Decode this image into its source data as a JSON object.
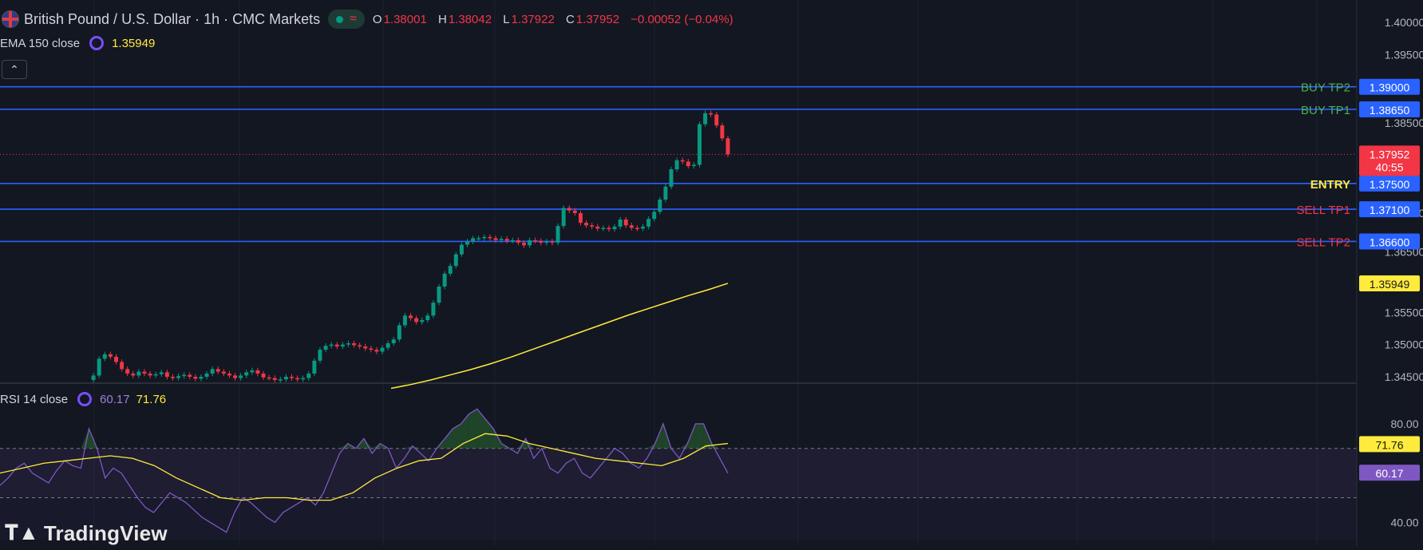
{
  "header": {
    "symbol_title": "British Pound / U.S. Dollar · 1h · CMC Markets",
    "open_label": "O",
    "open": "1.38001",
    "high_label": "H",
    "high": "1.38042",
    "low_label": "L",
    "low": "1.37922",
    "close_label": "C",
    "close": "1.37952",
    "change": "−0.00052 (−0.04%)"
  },
  "ema": {
    "label": "EMA 150 close",
    "value": "1.35949"
  },
  "rsi": {
    "label": "RSI 14 close",
    "value": "60.17",
    "ma_value": "71.76"
  },
  "price_axis": {
    "ticks": [
      "1.40000",
      "1.39500",
      "1.35500",
      "1.35000",
      "1.34500"
    ],
    "partial_ticks": [
      "1.38500",
      "1.37100",
      "1.36500"
    ]
  },
  "levels": [
    {
      "name": "BUY TP2",
      "price": 1.39,
      "label_text": "1.39000",
      "color": "#4caf50"
    },
    {
      "name": "BUY TP1",
      "price": 1.3865,
      "label_text": "1.38650",
      "color": "#4caf50"
    },
    {
      "name": "ENTRY",
      "price": 1.375,
      "label_text": "1.37500",
      "color": "#ffeb3b"
    },
    {
      "name": "SELL TP1",
      "price": 1.371,
      "label_text": "1.37100",
      "color": "#f23645"
    },
    {
      "name": "SELL TP2",
      "price": 1.366,
      "label_text": "1.36600",
      "color": "#f23645"
    }
  ],
  "current_price": {
    "value": "1.37952",
    "countdown": "40:55"
  },
  "ema_badge": "1.35949",
  "rsi_axis": {
    "ticks": [
      "80.00",
      "40.00"
    ],
    "ma_badge": "71.76",
    "rsi_badge": "60.17"
  },
  "branding": {
    "name": "TradingView"
  },
  "colors": {
    "background": "#131722",
    "up": "#089981",
    "down": "#f23645",
    "level_line": "#2962ff",
    "ema_line": "#ffeb3b",
    "rsi_line": "#7e57c2",
    "rsi_ma": "#ffeb3b"
  },
  "chart_data": {
    "type": "candlestick",
    "symbol": "GBPUSD",
    "interval": "1h",
    "price_ylim": [
      1.343,
      1.403
    ],
    "price_series": [
      1.3445,
      1.3452,
      1.3478,
      1.3485,
      1.3481,
      1.3473,
      1.3462,
      1.3455,
      1.3452,
      1.3458,
      1.3455,
      1.3452,
      1.3454,
      1.3457,
      1.345,
      1.3448,
      1.3451,
      1.3453,
      1.345,
      1.3447,
      1.345,
      1.3455,
      1.3462,
      1.3458,
      1.3455,
      1.3452,
      1.3448,
      1.3452,
      1.3457,
      1.346,
      1.3455,
      1.3449,
      1.3448,
      1.3445,
      1.3446,
      1.345,
      1.3448,
      1.3446,
      1.3448,
      1.3455,
      1.3475,
      1.3492,
      1.3498,
      1.35,
      1.3497,
      1.35,
      1.3502,
      1.3499,
      1.3497,
      1.3494,
      1.3492,
      1.3489,
      1.3495,
      1.3502,
      1.3508,
      1.353,
      1.3545,
      1.3541,
      1.3535,
      1.3538,
      1.3545,
      1.3565,
      1.359,
      1.361,
      1.3622,
      1.364,
      1.3655,
      1.366,
      1.3665,
      1.3665,
      1.3667,
      1.3665,
      1.3662,
      1.3664,
      1.3661,
      1.3662,
      1.3658,
      1.3654,
      1.3662,
      1.3661,
      1.3658,
      1.366,
      1.3658,
      1.3684,
      1.3712,
      1.3708,
      1.3704,
      1.3689,
      1.3685,
      1.3683,
      1.368,
      1.3681,
      1.3679,
      1.3683,
      1.3694,
      1.3685,
      1.3681,
      1.368,
      1.3683,
      1.3695,
      1.3706,
      1.3725,
      1.3745,
      1.3772,
      1.3786,
      1.3784,
      1.3777,
      1.3779,
      1.3842,
      1.3859,
      1.3857,
      1.384,
      1.382,
      1.3795
    ],
    "ema_150": [
      1.3432,
      1.3438,
      1.3445,
      1.3453,
      1.3461,
      1.347,
      1.348,
      1.3491,
      1.3502,
      1.3513,
      1.3524,
      1.3535,
      1.3546,
      1.3556,
      1.3566,
      1.3576,
      1.3585,
      1.3595
    ],
    "rsi_14": [
      55,
      58,
      62,
      64,
      60,
      58,
      56,
      61,
      65,
      63,
      62,
      78,
      70,
      58,
      62,
      60,
      55,
      50,
      46,
      44,
      48,
      52,
      50,
      48,
      45,
      42,
      40,
      38,
      36,
      44,
      50,
      48,
      45,
      42,
      40,
      44,
      46,
      48,
      50,
      47,
      52,
      60,
      68,
      72,
      70,
      74,
      68,
      72,
      70,
      62,
      66,
      71,
      68,
      65,
      70,
      74,
      78,
      80,
      84,
      86,
      82,
      78,
      72,
      70,
      68,
      74,
      66,
      70,
      62,
      60,
      64,
      66,
      60,
      58,
      62,
      66,
      70,
      68,
      64,
      62,
      66,
      72,
      80,
      70,
      66,
      72,
      80,
      80,
      72,
      66,
      60
    ],
    "rsi_ma": [
      60,
      62,
      64,
      65,
      66,
      67,
      66,
      63,
      58,
      54,
      50,
      49,
      50,
      50,
      49,
      49,
      52,
      58,
      62,
      65,
      66,
      72,
      76,
      75,
      72,
      70,
      68,
      66,
      65,
      64,
      63,
      66,
      71,
      72
    ],
    "rsi_ylim": [
      33,
      90
    ],
    "rsi_levels": [
      70,
      50
    ]
  }
}
